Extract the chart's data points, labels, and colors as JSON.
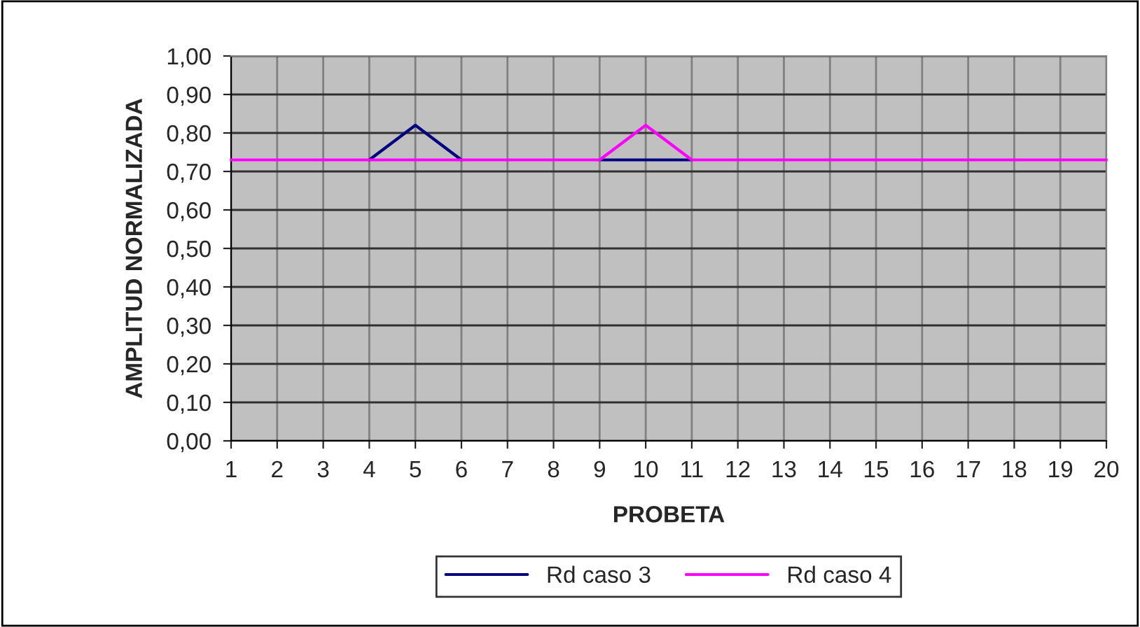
{
  "chart_data": {
    "type": "line",
    "xlabel": "PROBETA",
    "ylabel": "AMPLITUD NORMALIZADA",
    "x": [
      1,
      2,
      3,
      4,
      5,
      6,
      7,
      8,
      9,
      10,
      11,
      12,
      13,
      14,
      15,
      16,
      17,
      18,
      19,
      20
    ],
    "series": [
      {
        "name": "Rd caso 3",
        "color": "#000080",
        "values": [
          null,
          null,
          null,
          0.73,
          0.82,
          0.73,
          null,
          null,
          0.73,
          0.73,
          0.73,
          null,
          null,
          null,
          null,
          null,
          null,
          null,
          null,
          null
        ]
      },
      {
        "name": "Rd caso 4",
        "color": "#ff00ff",
        "values": [
          0.73,
          0.73,
          0.73,
          0.73,
          0.73,
          0.73,
          0.73,
          0.73,
          0.73,
          0.82,
          0.73,
          0.73,
          0.73,
          0.73,
          0.73,
          0.73,
          0.73,
          0.73,
          0.73,
          0.73
        ]
      }
    ],
    "xlim": [
      1,
      20
    ],
    "xticks": [
      1,
      2,
      3,
      4,
      5,
      6,
      7,
      8,
      9,
      10,
      11,
      12,
      13,
      14,
      15,
      16,
      17,
      18,
      19,
      20
    ],
    "ylim": [
      0,
      1
    ],
    "yticks": [
      {
        "value": 0,
        "label": "0,00"
      },
      {
        "value": 0.1,
        "label": "0,10"
      },
      {
        "value": 0.2,
        "label": "0,20"
      },
      {
        "value": 0.3,
        "label": "0,30"
      },
      {
        "value": 0.4,
        "label": "0,40"
      },
      {
        "value": 0.5,
        "label": "0,50"
      },
      {
        "value": 0.6,
        "label": "0,60"
      },
      {
        "value": 0.7,
        "label": "0,70"
      },
      {
        "value": 0.8,
        "label": "0,80"
      },
      {
        "value": 0.9,
        "label": "0,90"
      },
      {
        "value": 1,
        "label": "1,00"
      }
    ],
    "grid": true,
    "legend": "bottom",
    "marker": "none",
    "line_style": "solid"
  }
}
